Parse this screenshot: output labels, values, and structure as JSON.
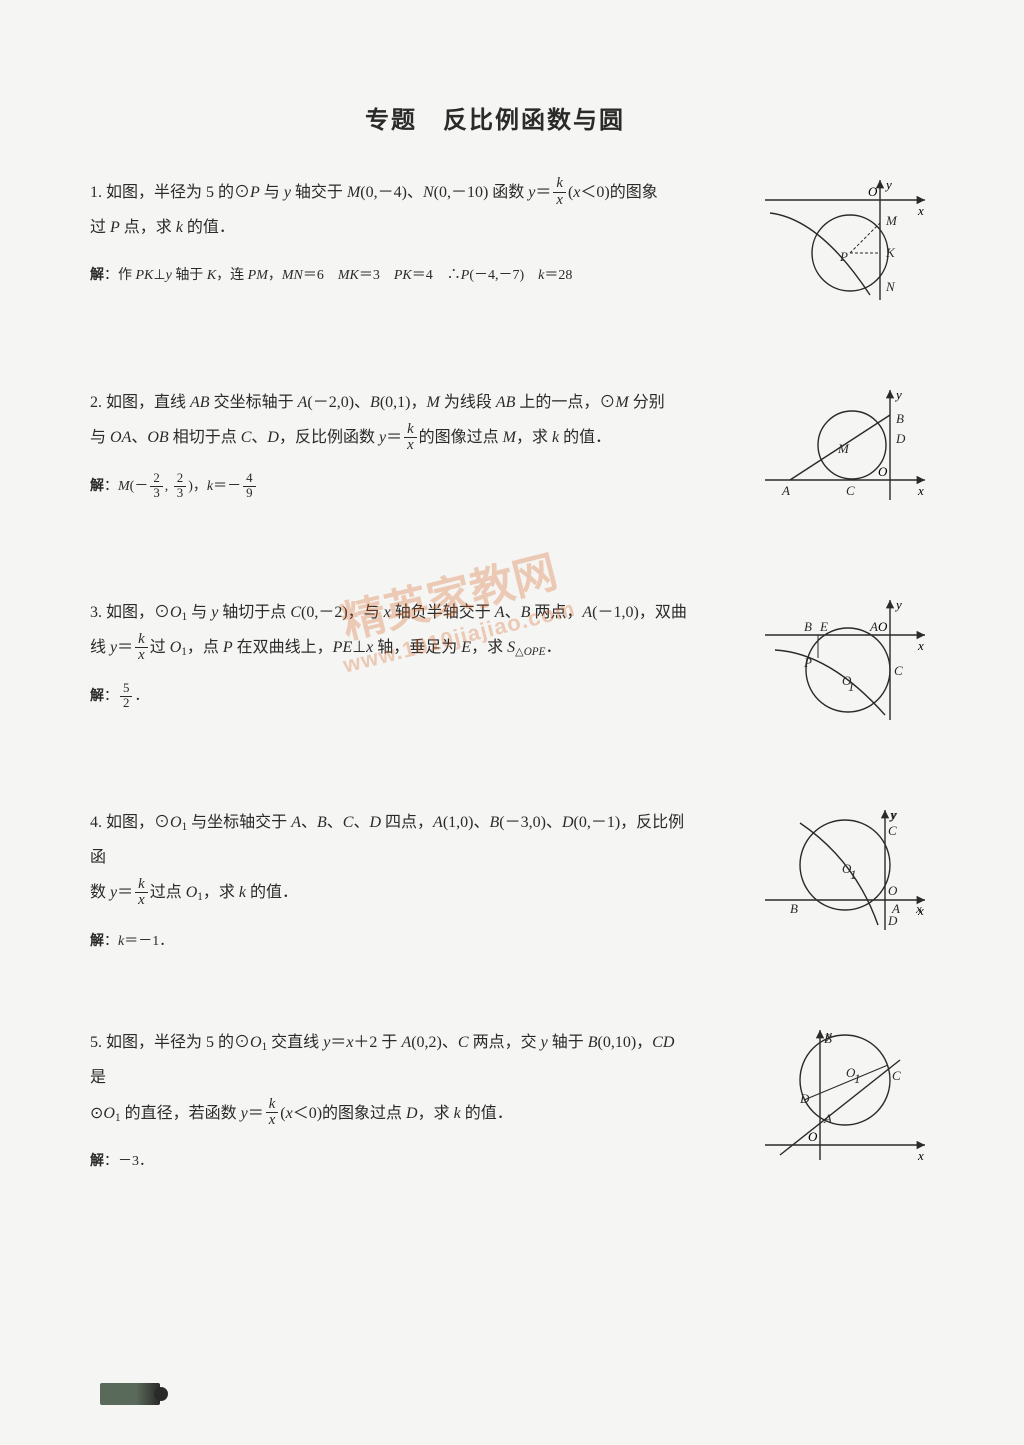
{
  "title": "专题　反比例函数与圆",
  "problems": [
    {
      "num": "1.",
      "body_html": "如图，半径为 5 的⊙<span class='italic'>P</span> 与 <span class='italic'>y</span> 轴交于 <span class='italic'>M</span>(0,－4)、<span class='italic'>N</span>(0,－10) 函数 <span class='italic'>y</span>＝<span class='frac'><span class='num italic'>k</span><span class='den italic'>x</span></span>(<span class='italic'>x</span>＜0)的图象<br>过 <span class='italic'>P</span> 点，求 <span class='italic'>k</span> 的值．",
      "answer_html": "<b>解</b>：作 <span class='italic'>PK</span>⊥<span class='italic'>y</span> 轴于 <span class='italic'>K</span>，连 <span class='italic'>PM</span>，<span class='italic'>MN</span>＝6　<span class='italic'>MK</span>＝3　<span class='italic'>PK</span>＝4　∴<span class='italic'>P</span>(－4,－7)　<span class='italic'>k</span>＝28",
      "figure": {
        "type": "q1"
      }
    },
    {
      "num": "2.",
      "body_html": "如图，直线 <span class='italic'>AB</span> 交坐标轴于 <span class='italic'>A</span>(－2,0)、<span class='italic'>B</span>(0,1)，<span class='italic'>M</span> 为线段 <span class='italic'>AB</span> 上的一点，⊙<span class='italic'>M</span> 分别<br>与 <span class='italic'>OA</span>、<span class='italic'>OB</span> 相切于点 <span class='italic'>C</span>、<span class='italic'>D</span>，反比例函数 <span class='italic'>y</span>＝<span class='frac'><span class='num italic'>k</span><span class='den italic'>x</span></span>的图像过点 <span class='italic'>M</span>，求 <span class='italic'>k</span> 的值．",
      "answer_html": "<b>解</b>：<span class='italic'>M</span>(－<span class='frac'><span class='num'>2</span><span class='den'>3</span></span>, <span class='frac'><span class='num'>2</span><span class='den'>3</span></span>)，<span class='italic'>k</span>＝－<span class='frac'><span class='num'>4</span><span class='den'>9</span></span>",
      "figure": {
        "type": "q2"
      }
    },
    {
      "num": "3.",
      "body_html": "如图，⊙<span class='italic'>O</span><span class='sub'>1</span> 与 <span class='italic'>y</span> 轴切于点 <span class='italic'>C</span>(0,－2)，与 <span class='italic'>x</span> 轴负半轴交于 <span class='italic'>A</span>、<span class='italic'>B</span> 两点，<span class='italic'>A</span>(－1,0)，双曲<br>线 <span class='italic'>y</span>＝<span class='frac'><span class='num italic'>k</span><span class='den italic'>x</span></span>过 <span class='italic'>O</span><span class='sub'>1</span>，点 <span class='italic'>P</span> 在双曲线上，<span class='italic'>PE</span>⊥<span class='italic'>x</span> 轴，垂足为 <span class='italic'>E</span>，求 <span class='italic'>S</span><span class='sub'>△<span class='italic'>OPE</span></span>．",
      "answer_html": "<b>解</b>：<span class='frac'><span class='num'>5</span><span class='den'>2</span></span>．",
      "figure": {
        "type": "q3"
      }
    },
    {
      "num": "4.",
      "body_html": "如图，⊙<span class='italic'>O</span><span class='sub'>1</span> 与坐标轴交于 <span class='italic'>A</span>、<span class='italic'>B</span>、<span class='italic'>C</span>、<span class='italic'>D</span> 四点，<span class='italic'>A</span>(1,0)、<span class='italic'>B</span>(－3,0)、<span class='italic'>D</span>(0,－1)，反比例函<br>数 <span class='italic'>y</span>＝<span class='frac'><span class='num italic'>k</span><span class='den italic'>x</span></span>过点 <span class='italic'>O</span><span class='sub'>1</span>，求 <span class='italic'>k</span> 的值．",
      "answer_html": "<b>解</b>：<span class='italic'>k</span>＝－1．",
      "figure": {
        "type": "q4"
      }
    },
    {
      "num": "5.",
      "body_html": "如图，半径为 5 的⊙<span class='italic'>O</span><span class='sub'>1</span> 交直线 <span class='italic'>y</span>＝<span class='italic'>x</span>＋2 于 <span class='italic'>A</span>(0,2)、<span class='italic'>C</span> 两点，交 <span class='italic'>y</span> 轴于 <span class='italic'>B</span>(0,10)，<span class='italic'>CD</span> 是<br>⊙<span class='italic'>O</span><span class='sub'>1</span> 的直径，若函数 <span class='italic'>y</span>＝<span class='frac'><span class='num italic'>k</span><span class='den italic'>x</span></span>(<span class='italic'>x</span>＜0)的图象过点 <span class='italic'>D</span>，求 <span class='italic'>k</span> 的值．",
      "answer_html": "<b>解</b>：－3．",
      "figure": {
        "type": "q5"
      }
    }
  ],
  "watermark": {
    "text": "精英家教网",
    "url": "www.1010jiajiao.com"
  },
  "figure_style": {
    "stroke": "#2a2a2a",
    "stroke_width": 1.4,
    "font_size": 13,
    "font_family": "Times New Roman, serif",
    "font_style": "italic"
  }
}
